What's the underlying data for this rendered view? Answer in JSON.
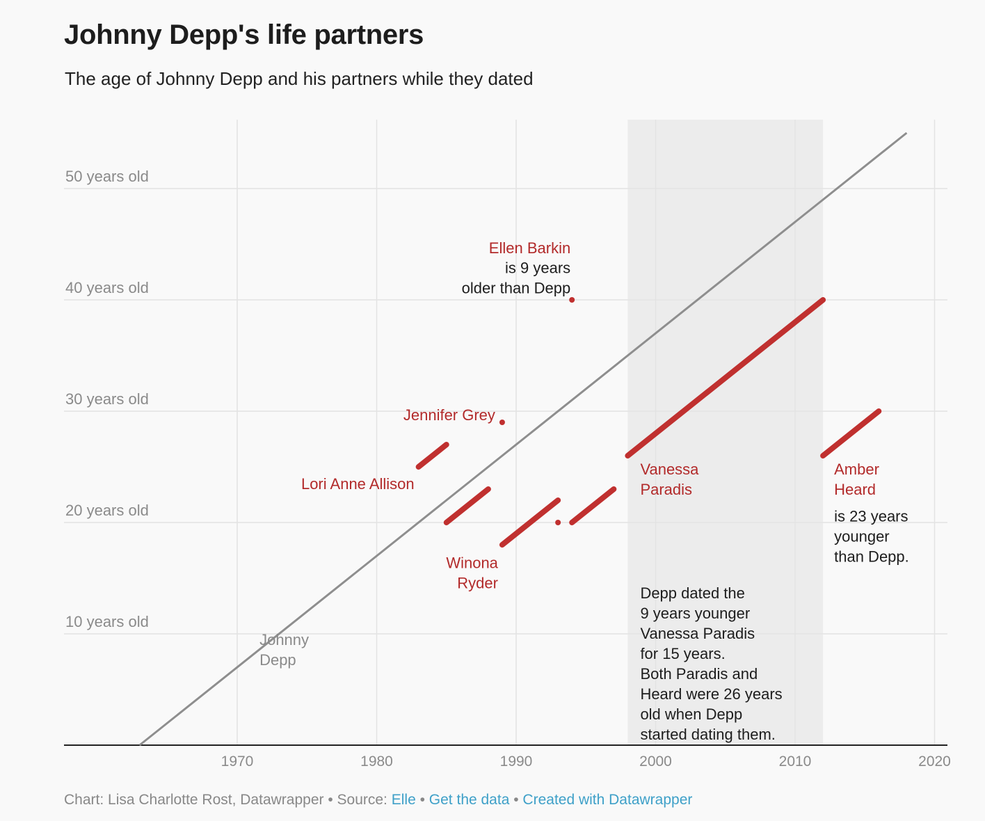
{
  "title": "Johnny Depp's life partners",
  "subtitle": "The age of Johnny Depp and his partners while they dated",
  "footer": {
    "credit": "Chart: Lisa Charlotte Rost, Datawrapper • Source: ",
    "source": "Elle",
    "sep": " • ",
    "get_data": "Get the data",
    "created": "Created with Datawrapper"
  },
  "colors": {
    "partner": "#c0302f",
    "depp": "#8e8e8e",
    "shade": "#ececec",
    "grid": "#e3e3e3"
  },
  "chart_data": {
    "type": "line",
    "x_range": [
      1958,
      2021
    ],
    "y_range": [
      0,
      56
    ],
    "x_ticks": [
      {
        "value": 1970,
        "label": "1970"
      },
      {
        "value": 1980,
        "label": "1980"
      },
      {
        "value": 1990,
        "label": "1990"
      },
      {
        "value": 2000,
        "label": "2000"
      },
      {
        "value": 2010,
        "label": "2010"
      },
      {
        "value": 2020,
        "label": "2020"
      }
    ],
    "y_ticks": [
      {
        "value": 10,
        "label": "10 years old"
      },
      {
        "value": 20,
        "label": "20 years old"
      },
      {
        "value": 30,
        "label": "30 years old"
      },
      {
        "value": 40,
        "label": "40 years old"
      },
      {
        "value": 50,
        "label": "50 years old"
      }
    ],
    "highlight_range": [
      1998,
      2012
    ],
    "depp": {
      "x": [
        1963,
        2018
      ],
      "y": [
        0,
        55
      ]
    },
    "partners": [
      {
        "x": [
          1983,
          1985
        ],
        "y": [
          25,
          27
        ]
      },
      {
        "x": [
          1985,
          1988
        ],
        "y": [
          20,
          23
        ]
      },
      {
        "x": [
          1989,
          1993
        ],
        "y": [
          18,
          22
        ]
      },
      {
        "x": [
          1989,
          1989
        ],
        "y": [
          29,
          29
        ]
      },
      {
        "x": [
          1993,
          1993
        ],
        "y": [
          20,
          20
        ]
      },
      {
        "x": [
          1994,
          1994
        ],
        "y": [
          40,
          40
        ]
      },
      {
        "x": [
          1994,
          1997
        ],
        "y": [
          20,
          23
        ]
      },
      {
        "x": [
          1998,
          2012
        ],
        "y": [
          26,
          40
        ]
      },
      {
        "x": [
          2012,
          2016
        ],
        "y": [
          26,
          30
        ]
      }
    ],
    "annotations": [
      {
        "x": 1993.9,
        "y": 44.2,
        "anchor": "end",
        "style": "red",
        "lines": [
          "Ellen Barkin"
        ]
      },
      {
        "x": 1993.9,
        "y": 42.4,
        "anchor": "end",
        "style": "dark",
        "lines": [
          "is 9 years",
          "older than Depp"
        ]
      },
      {
        "x": 1988.5,
        "y": 29.2,
        "anchor": "end",
        "style": "red",
        "lines": [
          "Jennifer Grey"
        ]
      },
      {
        "x": 1982.7,
        "y": 23.0,
        "anchor": "end",
        "style": "red",
        "lines": [
          "Lori Anne Allison"
        ]
      },
      {
        "x": 1988.7,
        "y": 15.9,
        "anchor": "end",
        "style": "red",
        "lines": [
          "Winona",
          "Ryder"
        ]
      },
      {
        "x": 1998.9,
        "y": 24.3,
        "anchor": "start",
        "style": "red",
        "lines": [
          "Vanessa",
          "Paradis"
        ]
      },
      {
        "x": 2012.8,
        "y": 24.3,
        "anchor": "start",
        "style": "red",
        "lines": [
          "Amber",
          "Heard"
        ]
      },
      {
        "x": 2012.8,
        "y": 20.1,
        "anchor": "start",
        "style": "dark",
        "lines": [
          "is 23 years",
          "younger",
          "than Depp."
        ]
      },
      {
        "x": 1998.9,
        "y": 13.2,
        "anchor": "start",
        "style": "dark",
        "lines": [
          "Depp dated the",
          "9 years younger",
          "Vanessa Paradis",
          "for 15 years.",
          "Both Paradis and",
          "Heard were 26 years",
          "old when Depp",
          "started dating them."
        ]
      },
      {
        "x": 1971.6,
        "y": 9.0,
        "anchor": "start",
        "style": "grey",
        "lines": [
          "Johnny",
          "Depp"
        ]
      }
    ]
  }
}
